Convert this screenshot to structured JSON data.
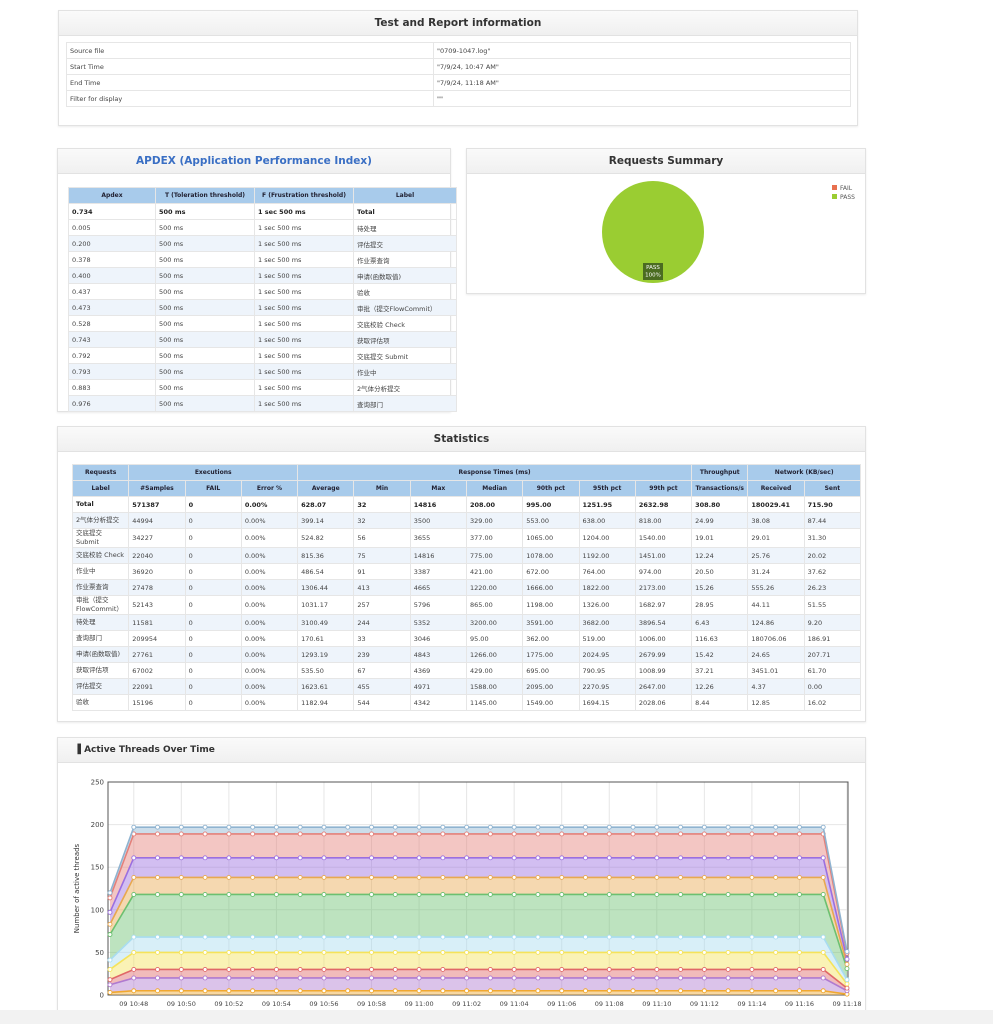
{
  "test_info": {
    "title": "Test and Report information",
    "rows": [
      [
        "Source file",
        "\"0709-1047.log\""
      ],
      [
        "Start Time",
        "\"7/9/24, 10:47 AM\""
      ],
      [
        "End Time",
        "\"7/9/24, 11:18 AM\""
      ],
      [
        "Filter for display",
        "\"\""
      ]
    ]
  },
  "apdex": {
    "title": "APDEX (Application Performance Index)",
    "headers": [
      "Apdex",
      "T (Toleration threshold)",
      "F (Frustration threshold)",
      "Label"
    ],
    "rows": [
      [
        "0.734",
        "500 ms",
        "1 sec 500 ms",
        "Total"
      ],
      [
        "0.005",
        "500 ms",
        "1 sec 500 ms",
        "待处理"
      ],
      [
        "0.200",
        "500 ms",
        "1 sec 500 ms",
        "评估提交"
      ],
      [
        "0.378",
        "500 ms",
        "1 sec 500 ms",
        "作业票查询"
      ],
      [
        "0.400",
        "500 ms",
        "1 sec 500 ms",
        "申请(函数取值)"
      ],
      [
        "0.437",
        "500 ms",
        "1 sec 500 ms",
        "验收"
      ],
      [
        "0.473",
        "500 ms",
        "1 sec 500 ms",
        "审批（提交FlowCommit）"
      ],
      [
        "0.528",
        "500 ms",
        "1 sec 500 ms",
        "交底校验 Check"
      ],
      [
        "0.743",
        "500 ms",
        "1 sec 500 ms",
        "获取评估项"
      ],
      [
        "0.792",
        "500 ms",
        "1 sec 500 ms",
        "交底提交 Submit"
      ],
      [
        "0.793",
        "500 ms",
        "1 sec 500 ms",
        "作业中"
      ],
      [
        "0.883",
        "500 ms",
        "1 sec 500 ms",
        "2气体分析提交"
      ],
      [
        "0.976",
        "500 ms",
        "1 sec 500 ms",
        "查询部门"
      ]
    ]
  },
  "statistics": {
    "title": "Statistics",
    "header_groups": [
      "Requests",
      "Executions",
      "Response Times (ms)",
      "Throughput",
      "Network (KB/sec)"
    ],
    "headers": [
      "Label",
      "#Samples",
      "FAIL",
      "Error %",
      "Average",
      "Min",
      "Max",
      "Median",
      "90th pct",
      "95th pct",
      "99th pct",
      "Transactions/s",
      "Received",
      "Sent"
    ],
    "rows": [
      [
        "Total",
        "571387",
        "0",
        "0.00%",
        "628.07",
        "32",
        "14816",
        "208.00",
        "995.00",
        "1251.95",
        "2632.98",
        "308.80",
        "180029.41",
        "715.90"
      ],
      [
        "2气体分析提交",
        "44994",
        "0",
        "0.00%",
        "399.14",
        "32",
        "3500",
        "329.00",
        "553.00",
        "638.00",
        "818.00",
        "24.99",
        "38.08",
        "87.44"
      ],
      [
        "交底提交 Submit",
        "34227",
        "0",
        "0.00%",
        "524.82",
        "56",
        "3655",
        "377.00",
        "1065.00",
        "1204.00",
        "1540.00",
        "19.01",
        "29.01",
        "31.30"
      ],
      [
        "交底校验 Check",
        "22040",
        "0",
        "0.00%",
        "815.36",
        "75",
        "14816",
        "775.00",
        "1078.00",
        "1192.00",
        "1451.00",
        "12.24",
        "25.76",
        "20.02"
      ],
      [
        "作业中",
        "36920",
        "0",
        "0.00%",
        "486.54",
        "91",
        "3387",
        "421.00",
        "672.00",
        "764.00",
        "974.00",
        "20.50",
        "31.24",
        "37.62"
      ],
      [
        "作业票查询",
        "27478",
        "0",
        "0.00%",
        "1306.44",
        "413",
        "4665",
        "1220.00",
        "1666.00",
        "1822.00",
        "2173.00",
        "15.26",
        "555.26",
        "26.23"
      ],
      [
        "审批（提交FlowCommit）",
        "52143",
        "0",
        "0.00%",
        "1031.17",
        "257",
        "5796",
        "865.00",
        "1198.00",
        "1326.00",
        "1682.97",
        "28.95",
        "44.11",
        "51.55"
      ],
      [
        "待处理",
        "11581",
        "0",
        "0.00%",
        "3100.49",
        "244",
        "5352",
        "3200.00",
        "3591.00",
        "3682.00",
        "3896.54",
        "6.43",
        "124.86",
        "9.20"
      ],
      [
        "查询部门",
        "209954",
        "0",
        "0.00%",
        "170.61",
        "33",
        "3046",
        "95.00",
        "362.00",
        "519.00",
        "1006.00",
        "116.63",
        "180706.06",
        "186.91"
      ],
      [
        "申请(函数取值)",
        "27761",
        "0",
        "0.00%",
        "1293.19",
        "239",
        "4843",
        "1266.00",
        "1775.00",
        "2024.95",
        "2679.99",
        "15.42",
        "24.65",
        "207.71"
      ],
      [
        "获取评估项",
        "67002",
        "0",
        "0.00%",
        "535.50",
        "67",
        "4369",
        "429.00",
        "695.00",
        "790.95",
        "1008.99",
        "37.21",
        "3451.01",
        "61.70"
      ],
      [
        "评估提交",
        "22091",
        "0",
        "0.00%",
        "1623.61",
        "455",
        "4971",
        "1588.00",
        "2095.00",
        "2270.95",
        "2647.00",
        "12.26",
        "4.37",
        "0.00"
      ],
      [
        "验收",
        "15196",
        "0",
        "0.00%",
        "1182.94",
        "544",
        "4342",
        "1145.00",
        "1549.00",
        "1694.15",
        "2028.06",
        "8.44",
        "12.85",
        "16.02"
      ]
    ]
  },
  "chart_data": [
    {
      "type": "pie",
      "title": "Requests Summary",
      "categories": [
        "FAIL",
        "PASS"
      ],
      "values": [
        0,
        100
      ],
      "value_labels": [
        null,
        "100%"
      ],
      "colors": [
        "#e8704f",
        "#9acd32"
      ],
      "legend": "top-right"
    },
    {
      "type": "line",
      "stacked": true,
      "title": "Active Threads Over Time",
      "y_label": "Number of active threads",
      "categories": [
        null,
        "09 10:48",
        null,
        "09 10:50",
        null,
        "09 10:52",
        null,
        "09 10:54",
        null,
        "09 10:56",
        null,
        "09 10:58",
        null,
        "09 11:00",
        null,
        "09 11:02",
        null,
        "09 11:04",
        null,
        "09 11:06",
        null,
        "09 11:08",
        null,
        "09 11:10",
        null,
        "09 11:12",
        null,
        "09 11:14",
        null,
        "09 11:16",
        null,
        "09 11:18"
      ],
      "ylim": [
        0,
        250
      ],
      "yticks": [
        0,
        50,
        100,
        150,
        200,
        250
      ],
      "grid": true,
      "series": [
        {
          "color": "#f0a830",
          "values": [
            3,
            5,
            5,
            5,
            5,
            5,
            5,
            5,
            5,
            5,
            5,
            5,
            5,
            5,
            5,
            5,
            5,
            5,
            5,
            5,
            5,
            5,
            5,
            5,
            5,
            5,
            5,
            5,
            5,
            5,
            5,
            1
          ]
        },
        {
          "color": "#b07ad0",
          "values": [
            9,
            15,
            15,
            15,
            15,
            15,
            15,
            15,
            15,
            15,
            15,
            15,
            15,
            15,
            15,
            15,
            15,
            15,
            15,
            15,
            15,
            15,
            15,
            15,
            15,
            15,
            15,
            15,
            15,
            15,
            15,
            4
          ]
        },
        {
          "color": "#e06868",
          "values": [
            6,
            10,
            10,
            10,
            10,
            10,
            10,
            10,
            10,
            10,
            10,
            10,
            10,
            10,
            10,
            10,
            10,
            10,
            10,
            10,
            10,
            10,
            10,
            10,
            10,
            10,
            10,
            10,
            10,
            10,
            10,
            3
          ]
        },
        {
          "color": "#f5e35a",
          "values": [
            12,
            20,
            20,
            20,
            20,
            20,
            20,
            20,
            20,
            20,
            20,
            20,
            20,
            20,
            20,
            20,
            20,
            20,
            20,
            20,
            20,
            20,
            20,
            20,
            20,
            20,
            20,
            20,
            20,
            20,
            20,
            5
          ]
        },
        {
          "color": "#a8dcf0",
          "values": [
            11,
            18,
            18,
            18,
            18,
            18,
            18,
            18,
            18,
            18,
            18,
            18,
            18,
            18,
            18,
            18,
            18,
            18,
            18,
            18,
            18,
            18,
            18,
            18,
            18,
            18,
            18,
            18,
            18,
            18,
            18,
            5
          ]
        },
        {
          "color": "#6cc070",
          "values": [
            30,
            50,
            50,
            50,
            50,
            50,
            50,
            50,
            50,
            50,
            50,
            50,
            50,
            50,
            50,
            50,
            50,
            50,
            50,
            50,
            50,
            50,
            50,
            50,
            50,
            50,
            50,
            50,
            50,
            50,
            50,
            13
          ]
        },
        {
          "color": "#e8a850",
          "values": [
            12,
            20,
            20,
            20,
            20,
            20,
            20,
            20,
            20,
            20,
            20,
            20,
            20,
            20,
            20,
            20,
            20,
            20,
            20,
            20,
            20,
            20,
            20,
            20,
            20,
            20,
            20,
            20,
            20,
            20,
            20,
            5
          ]
        },
        {
          "color": "#9b6fe0",
          "values": [
            14,
            23,
            23,
            23,
            23,
            23,
            23,
            23,
            23,
            23,
            23,
            23,
            23,
            23,
            23,
            23,
            23,
            23,
            23,
            23,
            23,
            23,
            23,
            23,
            23,
            23,
            23,
            23,
            23,
            23,
            23,
            6
          ]
        },
        {
          "color": "#e4807a",
          "values": [
            17,
            28,
            28,
            28,
            28,
            28,
            28,
            28,
            28,
            28,
            28,
            28,
            28,
            28,
            28,
            28,
            28,
            28,
            28,
            28,
            28,
            28,
            28,
            28,
            28,
            28,
            28,
            28,
            28,
            28,
            28,
            7
          ]
        },
        {
          "color": "#8fb3d0",
          "values": [
            6,
            8,
            8,
            8,
            8,
            8,
            8,
            8,
            8,
            8,
            8,
            8,
            8,
            8,
            8,
            8,
            8,
            8,
            8,
            8,
            8,
            8,
            8,
            8,
            8,
            8,
            8,
            8,
            8,
            8,
            8,
            2
          ]
        }
      ]
    }
  ]
}
